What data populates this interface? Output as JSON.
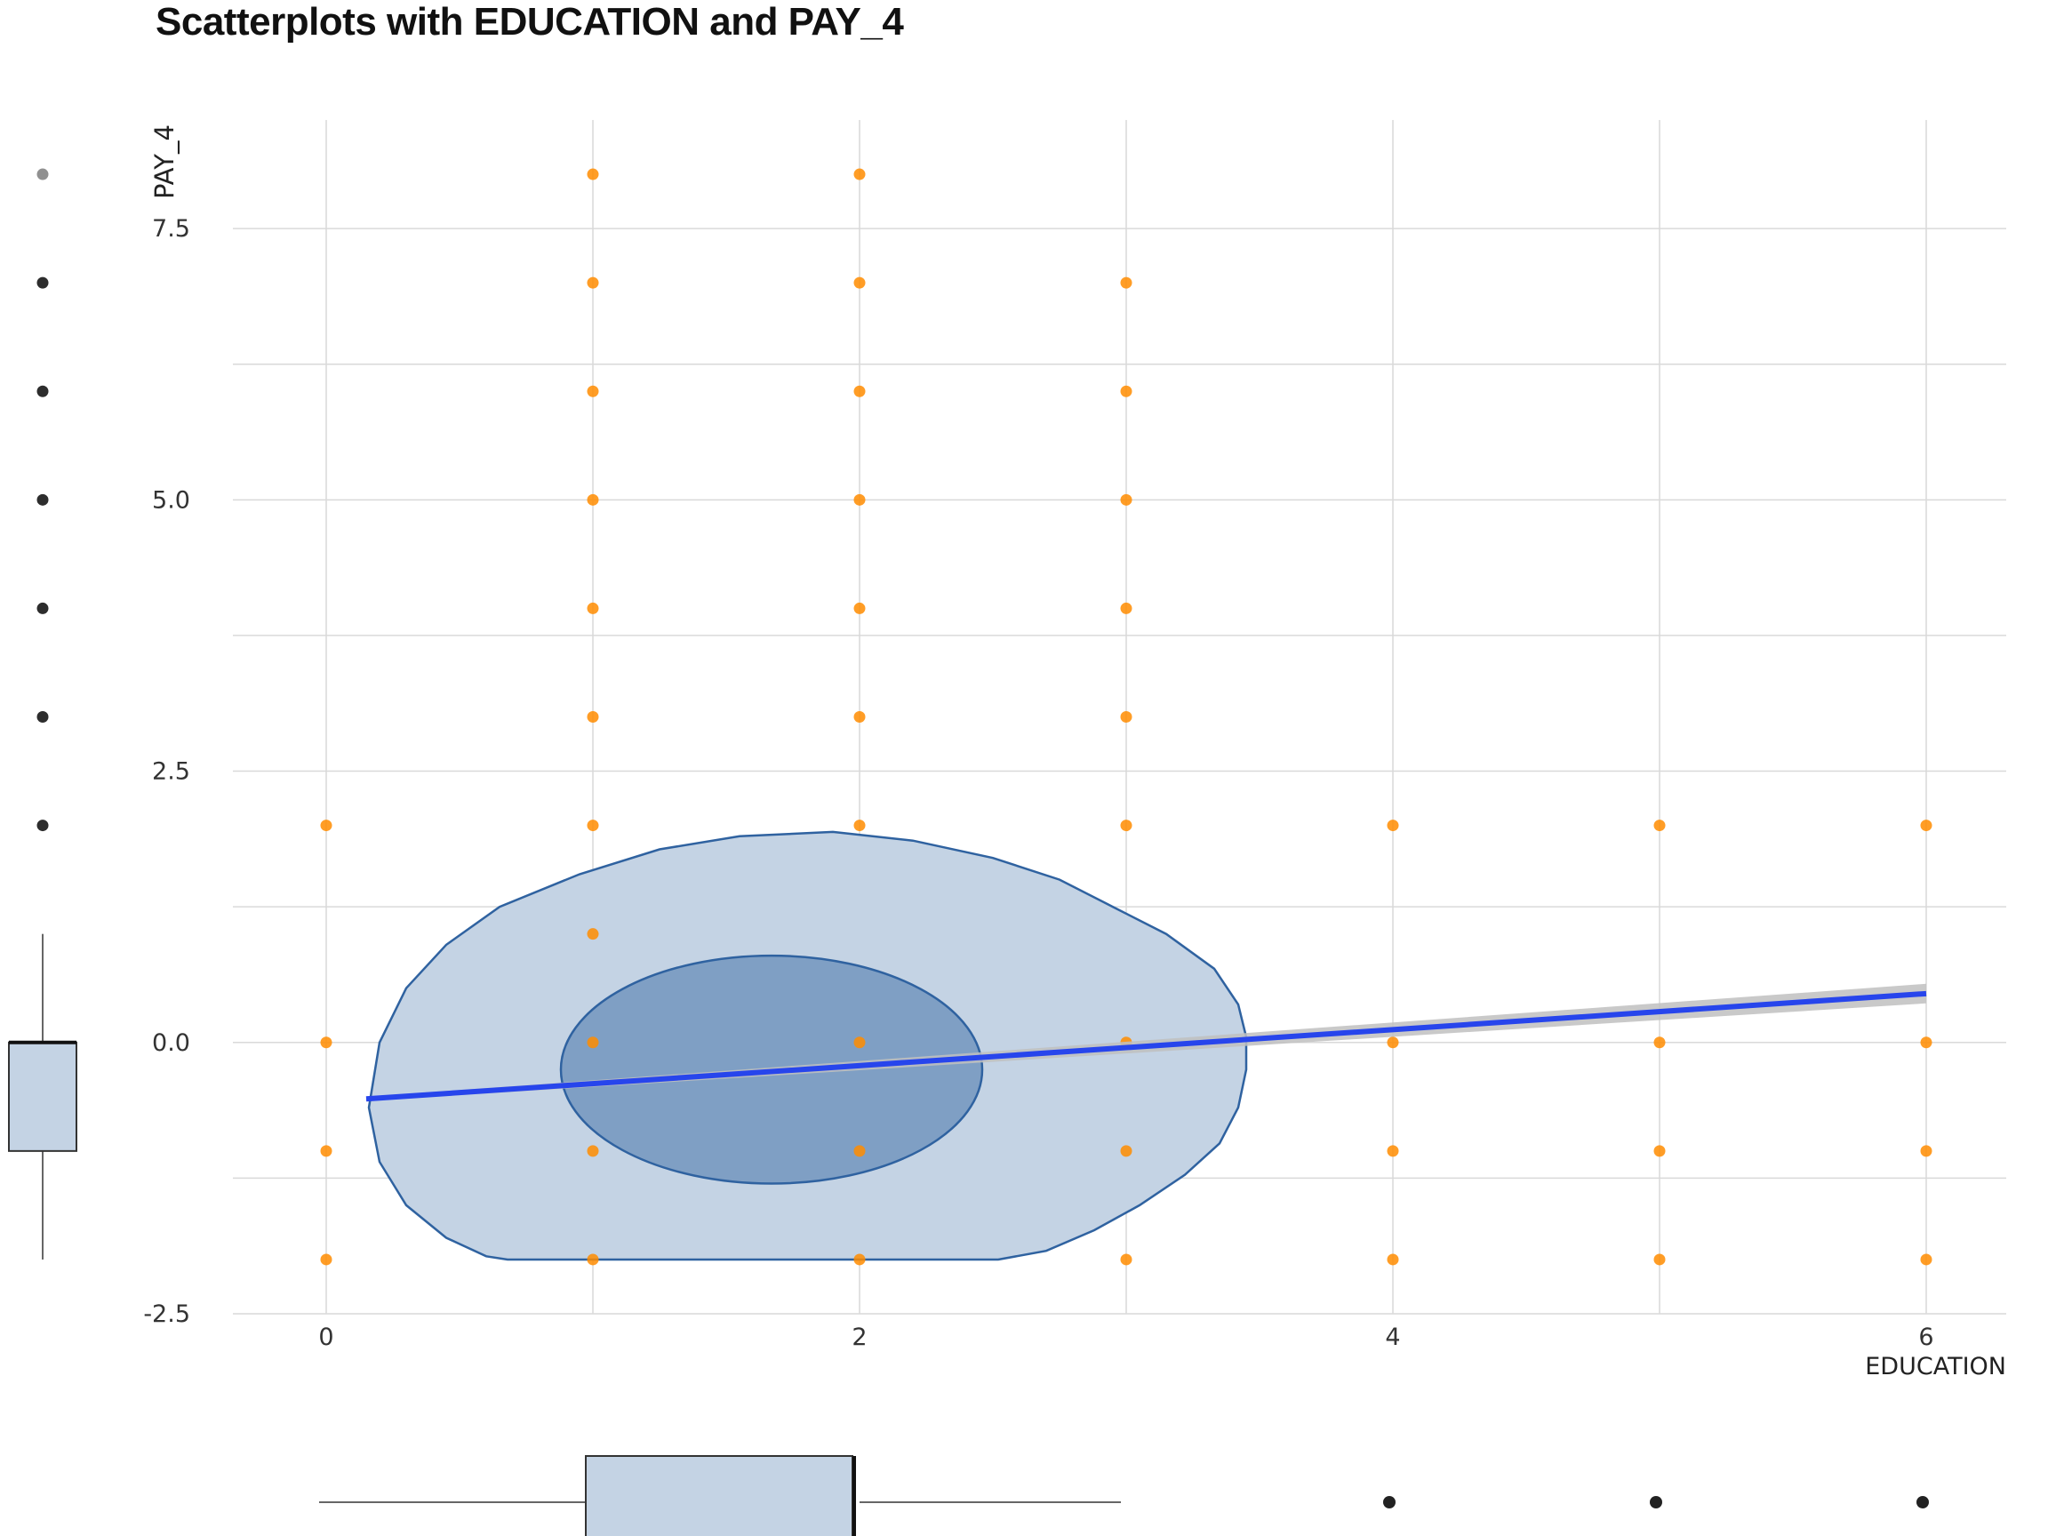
{
  "chart_data": {
    "type": "scatter",
    "title": "Scatterplots with EDUCATION and PAY_4",
    "xlabel": "EDUCATION",
    "ylabel": "PAY_4",
    "xlim": [
      -0.35,
      6.3
    ],
    "ylim": [
      -2.5,
      8.5
    ],
    "x_ticks": [
      0,
      2,
      4,
      6
    ],
    "y_ticks": [
      -2.5,
      0.0,
      2.5,
      5.0,
      7.5
    ],
    "x_tick_labels": [
      "0",
      "2",
      "4",
      "6"
    ],
    "y_tick_labels": [
      "-2.5",
      "0.0",
      "2.5",
      "5.0",
      "7.5"
    ],
    "grid": true,
    "legend": "none",
    "points": [
      {
        "x": 0,
        "y": 2
      },
      {
        "x": 0,
        "y": 0
      },
      {
        "x": 0,
        "y": -1
      },
      {
        "x": 0,
        "y": -2
      },
      {
        "x": 1,
        "y": 8
      },
      {
        "x": 1,
        "y": 7
      },
      {
        "x": 1,
        "y": 6
      },
      {
        "x": 1,
        "y": 5
      },
      {
        "x": 1,
        "y": 4
      },
      {
        "x": 1,
        "y": 3
      },
      {
        "x": 1,
        "y": 2
      },
      {
        "x": 1,
        "y": 1
      },
      {
        "x": 1,
        "y": 0
      },
      {
        "x": 1,
        "y": -1
      },
      {
        "x": 1,
        "y": -2
      },
      {
        "x": 2,
        "y": 8
      },
      {
        "x": 2,
        "y": 7
      },
      {
        "x": 2,
        "y": 6
      },
      {
        "x": 2,
        "y": 5
      },
      {
        "x": 2,
        "y": 4
      },
      {
        "x": 2,
        "y": 3
      },
      {
        "x": 2,
        "y": 2
      },
      {
        "x": 2,
        "y": 0
      },
      {
        "x": 2,
        "y": -1
      },
      {
        "x": 2,
        "y": -2
      },
      {
        "x": 3,
        "y": 7
      },
      {
        "x": 3,
        "y": 6
      },
      {
        "x": 3,
        "y": 5
      },
      {
        "x": 3,
        "y": 4
      },
      {
        "x": 3,
        "y": 3
      },
      {
        "x": 3,
        "y": 2
      },
      {
        "x": 3,
        "y": 0
      },
      {
        "x": 3,
        "y": -1
      },
      {
        "x": 3,
        "y": -2
      },
      {
        "x": 4,
        "y": 2
      },
      {
        "x": 4,
        "y": 0
      },
      {
        "x": 4,
        "y": -1
      },
      {
        "x": 4,
        "y": -2
      },
      {
        "x": 5,
        "y": 2
      },
      {
        "x": 5,
        "y": 0
      },
      {
        "x": 5,
        "y": -1
      },
      {
        "x": 5,
        "y": -2
      },
      {
        "x": 6,
        "y": 2
      },
      {
        "x": 6,
        "y": 0
      },
      {
        "x": 6,
        "y": -1
      },
      {
        "x": 6,
        "y": -2
      }
    ],
    "regression_line": {
      "x": [
        0.15,
        6.0
      ],
      "y": [
        -0.52,
        0.45
      ]
    },
    "density_contours": [
      {
        "level": "outer",
        "polygon": [
          [
            0.68,
            -2.0
          ],
          [
            2.52,
            -2.0
          ],
          [
            2.7,
            -1.92
          ],
          [
            2.88,
            -1.73
          ],
          [
            3.05,
            -1.5
          ],
          [
            3.22,
            -1.22
          ],
          [
            3.35,
            -0.93
          ],
          [
            3.42,
            -0.6
          ],
          [
            3.45,
            -0.25
          ],
          [
            3.45,
            0.05
          ],
          [
            3.42,
            0.35
          ],
          [
            3.33,
            0.68
          ],
          [
            3.15,
            1.0
          ],
          [
            2.95,
            1.25
          ],
          [
            2.75,
            1.5
          ],
          [
            2.5,
            1.7
          ],
          [
            2.2,
            1.86
          ],
          [
            1.9,
            1.94
          ],
          [
            1.55,
            1.9
          ],
          [
            1.25,
            1.78
          ],
          [
            0.95,
            1.55
          ],
          [
            0.65,
            1.25
          ],
          [
            0.45,
            0.9
          ],
          [
            0.3,
            0.5
          ],
          [
            0.2,
            0.0
          ],
          [
            0.16,
            -0.6
          ],
          [
            0.2,
            -1.1
          ],
          [
            0.3,
            -1.5
          ],
          [
            0.45,
            -1.8
          ],
          [
            0.6,
            -1.97
          ]
        ]
      },
      {
        "level": "inner",
        "center": [
          1.67,
          -0.25
        ],
        "rx": 0.79,
        "ry": 1.05
      }
    ],
    "boxplot_x": {
      "whisker_low": 0,
      "q1": 1,
      "median": 2,
      "q3": 2,
      "whisker_high": 3,
      "outliers": [
        4,
        5,
        6
      ]
    },
    "boxplot_y": {
      "whisker_low": -2,
      "q1": -1,
      "median": 0,
      "q3": 0,
      "whisker_high": 1,
      "outliers": [
        2,
        3,
        4,
        5,
        6,
        7,
        8
      ]
    },
    "colors": {
      "points": "#ff8c00",
      "regression": "#2745ec",
      "confidence_band": "#c0c0c0",
      "contour_outer_fill": "#c4d3e4",
      "contour_inner_fill": "#7f9fc4",
      "contour_stroke": "#2f62a0",
      "boxplot_fill": "#c4d3e4",
      "grid": "#d9d9d9",
      "outlier": "#222222"
    }
  }
}
